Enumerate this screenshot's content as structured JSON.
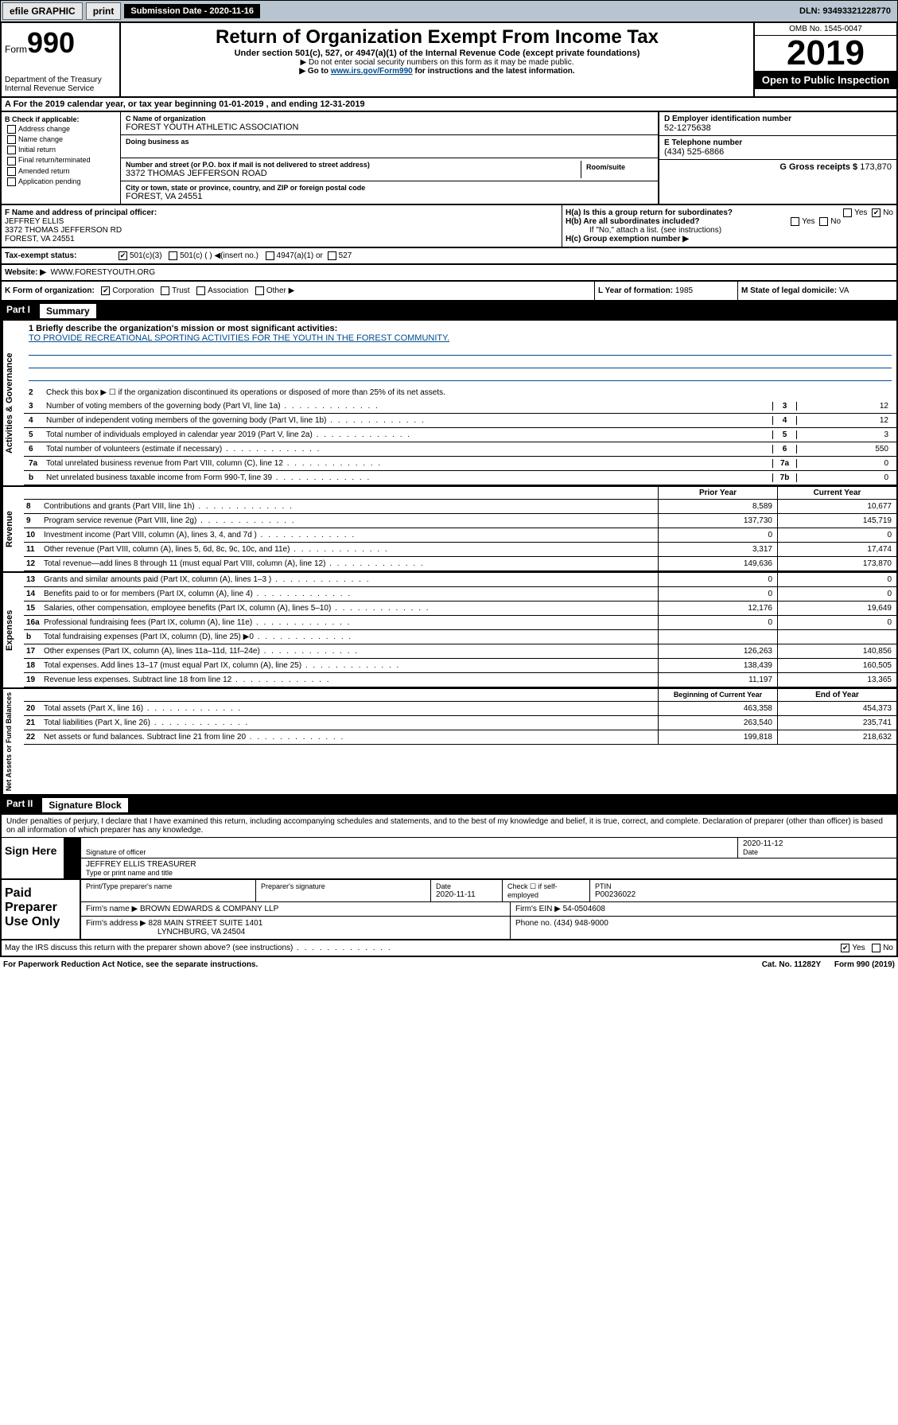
{
  "topbar": {
    "efile": "efile GRAPHIC",
    "print": "print",
    "sub_label": "Submission Date - 2020-11-16",
    "dln": "DLN: 93493321228770"
  },
  "header": {
    "form_label": "Form",
    "form_no": "990",
    "dept": "Department of the Treasury\nInternal Revenue Service",
    "title": "Return of Organization Exempt From Income Tax",
    "subtitle": "Under section 501(c), 527, or 4947(a)(1) of the Internal Revenue Code (except private foundations)",
    "note1": "▶ Do not enter social security numbers on this form as it may be made public.",
    "note2_pre": "▶ Go to ",
    "note2_link": "www.irs.gov/Form990",
    "note2_post": " for instructions and the latest information.",
    "omb": "OMB No. 1545-0047",
    "year": "2019",
    "open": "Open to Public Inspection"
  },
  "a": "A For the 2019 calendar year, or tax year beginning 01-01-2019    , and ending 12-31-2019",
  "b": {
    "title": "B Check if applicable:",
    "opts": [
      "Address change",
      "Name change",
      "Initial return",
      "Final return/terminated",
      "Amended return",
      "Application pending"
    ]
  },
  "c": {
    "name_lbl": "C Name of organization",
    "name": "FOREST YOUTH ATHLETIC ASSOCIATION",
    "dba_lbl": "Doing business as",
    "addr_lbl": "Number and street (or P.O. box if mail is not delivered to street address)",
    "room_lbl": "Room/suite",
    "addr": "3372 THOMAS JEFFERSON ROAD",
    "city_lbl": "City or town, state or province, country, and ZIP or foreign postal code",
    "city": "FOREST, VA  24551"
  },
  "d": {
    "lbl": "D Employer identification number",
    "val": "52-1275638"
  },
  "e": {
    "lbl": "E Telephone number",
    "val": "(434) 525-6866"
  },
  "g": {
    "lbl": "G Gross receipts $",
    "val": "173,870"
  },
  "f": {
    "lbl": "F  Name and address of principal officer:",
    "name": "JEFFREY ELLIS",
    "addr1": "3372 THOMAS JEFFERSON RD",
    "addr2": "FOREST, VA  24551"
  },
  "h": {
    "a": "H(a)  Is this a group return for subordinates?",
    "b": "H(b)  Are all subordinates included?",
    "b_note": "If \"No,\" attach a list. (see instructions)",
    "c": "H(c)  Group exemption number ▶",
    "yes": "Yes",
    "no": "No"
  },
  "i": {
    "lbl": "Tax-exempt status:",
    "opt1": "501(c)(3)",
    "opt2": "501(c) (   ) ◀(insert no.)",
    "opt3": "4947(a)(1) or",
    "opt4": "527"
  },
  "j": {
    "lbl": "Website: ▶",
    "val": "WWW.FORESTYOUTH.ORG"
  },
  "k": {
    "lbl": "K Form of organization:",
    "opts": [
      "Corporation",
      "Trust",
      "Association",
      "Other ▶"
    ],
    "l_lbl": "L Year of formation:",
    "l_val": "1985",
    "m_lbl": "M State of legal domicile:",
    "m_val": "VA"
  },
  "part1": {
    "num": "Part I",
    "title": "Summary"
  },
  "mission": {
    "lbl": "1  Briefly describe the organization's mission or most significant activities:",
    "txt": "TO PROVIDE RECREATIONAL SPORTING ACTIVITIES FOR THE YOUTH IN THE FOREST COMMUNITY."
  },
  "line2": "Check this box ▶ ☐  if the organization discontinued its operations or disposed of more than 25% of its net assets.",
  "gov_lines": [
    {
      "no": "3",
      "txt": "Number of voting members of the governing body (Part VI, line 1a)",
      "box": "3",
      "val": "12"
    },
    {
      "no": "4",
      "txt": "Number of independent voting members of the governing body (Part VI, line 1b)",
      "box": "4",
      "val": "12"
    },
    {
      "no": "5",
      "txt": "Total number of individuals employed in calendar year 2019 (Part V, line 2a)",
      "box": "5",
      "val": "3"
    },
    {
      "no": "6",
      "txt": "Total number of volunteers (estimate if necessary)",
      "box": "6",
      "val": "550"
    },
    {
      "no": "7a",
      "txt": "Total unrelated business revenue from Part VIII, column (C), line 12",
      "box": "7a",
      "val": "0"
    },
    {
      "no": "b",
      "txt": "Net unrelated business taxable income from Form 990-T, line 39",
      "box": "7b",
      "val": "0"
    }
  ],
  "col_hdrs": {
    "prior": "Prior Year",
    "current": "Current Year"
  },
  "col_hdrs2": {
    "prior": "Beginning of Current Year",
    "current": "End of Year"
  },
  "revenue": [
    {
      "no": "8",
      "txt": "Contributions and grants (Part VIII, line 1h)",
      "p": "8,589",
      "c": "10,677"
    },
    {
      "no": "9",
      "txt": "Program service revenue (Part VIII, line 2g)",
      "p": "137,730",
      "c": "145,719"
    },
    {
      "no": "10",
      "txt": "Investment income (Part VIII, column (A), lines 3, 4, and 7d )",
      "p": "0",
      "c": "0"
    },
    {
      "no": "11",
      "txt": "Other revenue (Part VIII, column (A), lines 5, 6d, 8c, 9c, 10c, and 11e)",
      "p": "3,317",
      "c": "17,474"
    },
    {
      "no": "12",
      "txt": "Total revenue—add lines 8 through 11 (must equal Part VIII, column (A), line 12)",
      "p": "149,636",
      "c": "173,870"
    }
  ],
  "expenses": [
    {
      "no": "13",
      "txt": "Grants and similar amounts paid (Part IX, column (A), lines 1–3 )",
      "p": "0",
      "c": "0"
    },
    {
      "no": "14",
      "txt": "Benefits paid to or for members (Part IX, column (A), line 4)",
      "p": "0",
      "c": "0"
    },
    {
      "no": "15",
      "txt": "Salaries, other compensation, employee benefits (Part IX, column (A), lines 5–10)",
      "p": "12,176",
      "c": "19,649"
    },
    {
      "no": "16a",
      "txt": "Professional fundraising fees (Part IX, column (A), line 11e)",
      "p": "0",
      "c": "0"
    },
    {
      "no": "b",
      "txt": "Total fundraising expenses (Part IX, column (D), line 25) ▶0",
      "p": "",
      "c": ""
    },
    {
      "no": "17",
      "txt": "Other expenses (Part IX, column (A), lines 11a–11d, 11f–24e)",
      "p": "126,263",
      "c": "140,856"
    },
    {
      "no": "18",
      "txt": "Total expenses. Add lines 13–17 (must equal Part IX, column (A), line 25)",
      "p": "138,439",
      "c": "160,505"
    },
    {
      "no": "19",
      "txt": "Revenue less expenses. Subtract line 18 from line 12",
      "p": "11,197",
      "c": "13,365"
    }
  ],
  "netassets": [
    {
      "no": "20",
      "txt": "Total assets (Part X, line 16)",
      "p": "463,358",
      "c": "454,373"
    },
    {
      "no": "21",
      "txt": "Total liabilities (Part X, line 26)",
      "p": "263,540",
      "c": "235,741"
    },
    {
      "no": "22",
      "txt": "Net assets or fund balances. Subtract line 21 from line 20",
      "p": "199,818",
      "c": "218,632"
    }
  ],
  "vlabels": {
    "gov": "Activities & Governance",
    "rev": "Revenue",
    "exp": "Expenses",
    "net": "Net Assets or Fund Balances"
  },
  "part2": {
    "num": "Part II",
    "title": "Signature Block"
  },
  "perjury": "Under penalties of perjury, I declare that I have examined this return, including accompanying schedules and statements, and to the best of my knowledge and belief, it is true, correct, and complete. Declaration of preparer (other than officer) is based on all information of which preparer has any knowledge.",
  "sign": {
    "here": "Sign Here",
    "sig_lbl": "Signature of officer",
    "date_lbl": "Date",
    "date": "2020-11-12",
    "name": "JEFFREY ELLIS TREASURER",
    "name_lbl": "Type or print name and title"
  },
  "prep": {
    "lbl": "Paid Preparer Use Only",
    "h1": "Print/Type preparer's name",
    "h2": "Preparer's signature",
    "h3": "Date",
    "date": "2020-11-11",
    "h4": "Check ☐ if self-employed",
    "h5": "PTIN",
    "ptin": "P00236022",
    "firm_lbl": "Firm's name    ▶",
    "firm": "BROWN EDWARDS & COMPANY LLP",
    "ein_lbl": "Firm's EIN ▶",
    "ein": "54-0504608",
    "addr_lbl": "Firm's address ▶",
    "addr1": "828 MAIN STREET SUITE 1401",
    "addr2": "LYNCHBURG, VA  24504",
    "phone_lbl": "Phone no.",
    "phone": "(434) 948-9000"
  },
  "discuss": "May the IRS discuss this return with the preparer shown above? (see instructions)",
  "paperwork": "For Paperwork Reduction Act Notice, see the separate instructions.",
  "cat": "Cat. No. 11282Y",
  "formno_foot": "Form 990 (2019)"
}
